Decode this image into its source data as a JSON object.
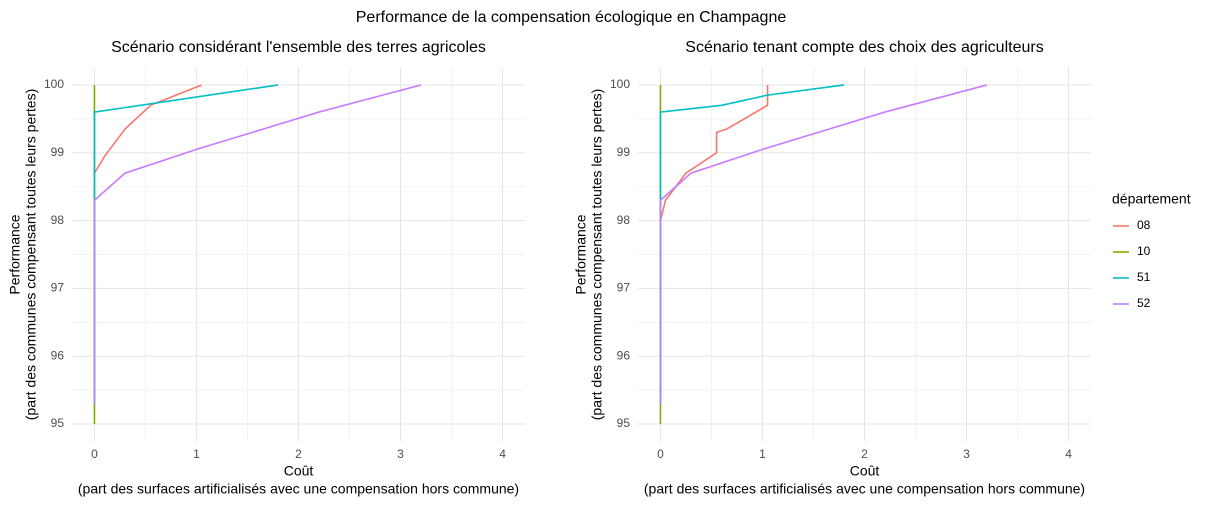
{
  "title": "Performance de la compensation écologique en Champagne",
  "legend_title": "département",
  "chart_data": [
    {
      "type": "line",
      "title": "Scénario considérant l'ensemble des terres agricoles",
      "xlabel": [
        "Coût",
        "(part des surfaces artificialisés avec une compensation hors commune)"
      ],
      "ylabel": [
        "Performance",
        "(part des communes compensant toutes leurs pertes)"
      ],
      "xlim": [
        -0.22,
        4.22
      ],
      "ylim": [
        94.75,
        100.25
      ],
      "xticks": [
        0,
        1,
        2,
        3,
        4
      ],
      "yticks": [
        95,
        96,
        97,
        98,
        99,
        100
      ],
      "grid": true,
      "series": [
        {
          "name": "08",
          "color": "#F8766D",
          "x": [
            0,
            0.1,
            0.3,
            0.55,
            0.8,
            1.05
          ],
          "values": [
            98.7,
            98.95,
            99.35,
            99.7,
            99.85,
            100
          ]
        },
        {
          "name": "10",
          "color": "#7CAE00",
          "x": [
            0,
            0
          ],
          "values": [
            95,
            100
          ]
        },
        {
          "name": "51",
          "color": "#00BFC4",
          "x": [
            0,
            0,
            1.8
          ],
          "values": [
            95.3,
            99.6,
            100
          ]
        },
        {
          "name": "52",
          "color": "#C77CFF",
          "x": [
            0,
            0,
            0.3,
            1,
            2.2,
            3.2
          ],
          "values": [
            95.3,
            98.3,
            98.7,
            99.05,
            99.6,
            100
          ]
        }
      ]
    },
    {
      "type": "line",
      "title": "Scénario tenant compte des choix des agriculteurs",
      "xlabel": [
        "Coût",
        "(part des surfaces artificialisés avec une compensation hors commune)"
      ],
      "ylabel": [
        "Performance",
        "(part des communes compensant toutes leurs pertes)"
      ],
      "xlim": [
        -0.22,
        4.22
      ],
      "ylim": [
        94.75,
        100.25
      ],
      "xticks": [
        0,
        1,
        2,
        3,
        4
      ],
      "yticks": [
        95,
        96,
        97,
        98,
        99,
        100
      ],
      "grid": true,
      "series": [
        {
          "name": "08",
          "color": "#F8766D",
          "x": [
            0,
            0.05,
            0.25,
            0.55,
            0.55,
            0.65,
            1.05,
            1.05
          ],
          "values": [
            98.0,
            98.3,
            98.7,
            99.0,
            99.3,
            99.35,
            99.7,
            100
          ]
        },
        {
          "name": "10",
          "color": "#7CAE00",
          "x": [
            0,
            0
          ],
          "values": [
            95,
            100
          ]
        },
        {
          "name": "51",
          "color": "#00BFC4",
          "x": [
            0,
            0,
            0.6,
            1.05,
            1.8
          ],
          "values": [
            95.3,
            99.6,
            99.7,
            99.85,
            100
          ]
        },
        {
          "name": "52",
          "color": "#C77CFF",
          "x": [
            0,
            0,
            0.3,
            1,
            2.2,
            3.2
          ],
          "values": [
            95.3,
            98.3,
            98.7,
            99.05,
            99.6,
            100
          ]
        }
      ]
    }
  ]
}
